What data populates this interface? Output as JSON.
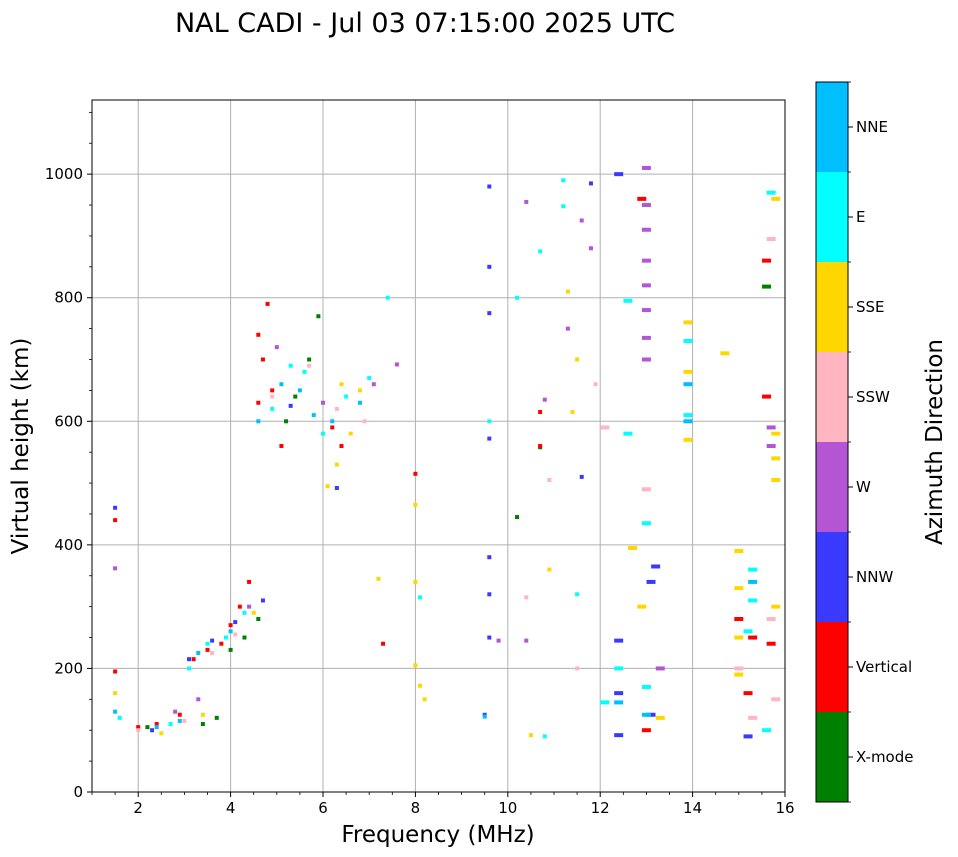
{
  "chart_data": {
    "type": "scatter",
    "title": "NAL CADI - Jul 03 07:15:00 2025 UTC",
    "xlabel": "Frequency (MHz)",
    "ylabel": "Virtual height (km)",
    "xlim": [
      1,
      16
    ],
    "ylim": [
      0,
      1120
    ],
    "xticks": [
      2,
      4,
      6,
      8,
      10,
      12,
      14,
      16
    ],
    "yticks": [
      0,
      200,
      400,
      600,
      800,
      1000
    ],
    "grid": true,
    "colorbar": {
      "label": "Azimuth Direction",
      "categories": [
        {
          "name": "X-mode",
          "color": "#008000"
        },
        {
          "name": "Vertical",
          "color": "#ff0000"
        },
        {
          "name": "NNW",
          "color": "#3a3aff"
        },
        {
          "name": "W",
          "color": "#b455d4"
        },
        {
          "name": "SSW",
          "color": "#ffb6c1"
        },
        {
          "name": "SSE",
          "color": "#ffd700"
        },
        {
          "name": "E",
          "color": "#00ffff"
        },
        {
          "name": "NNE",
          "color": "#00bfff"
        }
      ]
    },
    "series": [
      {
        "name": "X-mode",
        "x": [
          3.7,
          4.3,
          4.6,
          5.2,
          5.4,
          5.7,
          5.9,
          3.4,
          4.0,
          10.2,
          10.7,
          15.6,
          2.2
        ],
        "y": [
          120,
          250,
          280,
          600,
          640,
          700,
          770,
          110,
          230,
          445,
          558,
          818,
          105
        ]
      },
      {
        "name": "Vertical",
        "x": [
          1.5,
          1.5,
          2.0,
          2.4,
          2.9,
          3.2,
          3.5,
          3.8,
          4.0,
          4.2,
          4.4,
          4.6,
          4.7,
          4.9,
          5.1,
          6.2,
          6.4,
          7.3,
          8.0,
          10.7,
          10.7,
          12.9,
          13.0,
          15.6,
          15.6,
          15.2,
          15.3,
          15.0,
          15.7,
          4.6,
          4.8
        ],
        "y": [
          440,
          195,
          105,
          110,
          125,
          215,
          230,
          240,
          270,
          300,
          340,
          630,
          700,
          650,
          560,
          590,
          560,
          240,
          515,
          615,
          560,
          960,
          100,
          860,
          640,
          160,
          250,
          280,
          240,
          740,
          790
        ]
      },
      {
        "name": "NNW",
        "x": [
          1.5,
          2.3,
          3.1,
          3.6,
          4.1,
          4.7,
          5.3,
          6.3,
          9.6,
          9.6,
          9.6,
          9.6,
          9.6,
          9.6,
          9.6,
          12.4,
          12.4,
          12.4,
          12.4,
          13.1,
          13.1,
          13.2,
          15.2,
          11.6,
          11.8,
          9.5
        ],
        "y": [
          460,
          100,
          215,
          245,
          275,
          310,
          625,
          492,
          980,
          850,
          775,
          572,
          380,
          320,
          250,
          1000,
          245,
          160,
          92,
          340,
          125,
          365,
          90,
          510,
          985,
          125
        ]
      },
      {
        "name": "W",
        "x": [
          1.5,
          2.8,
          3.3,
          4.4,
          5.0,
          6.0,
          7.1,
          7.6,
          10.4,
          10.8,
          11.3,
          11.6,
          11.8,
          13.0,
          13.0,
          13.0,
          13.0,
          13.0,
          13.0,
          13.0,
          13.0,
          13.3,
          15.7,
          15.7,
          9.8,
          10.4
        ],
        "y": [
          362,
          130,
          150,
          300,
          720,
          630,
          660,
          692,
          955,
          635,
          750,
          925,
          880,
          1010,
          950,
          910,
          860,
          820,
          780,
          735,
          700,
          200,
          590,
          560,
          245,
          245
        ]
      },
      {
        "name": "SSW",
        "x": [
          2.0,
          3.0,
          3.6,
          4.1,
          4.9,
          5.7,
          6.3,
          6.9,
          11.9,
          12.1,
          13.0,
          15.7,
          15.8,
          15.7,
          15.0,
          15.3,
          10.9,
          10.4,
          11.5
        ],
        "y": [
          100,
          115,
          225,
          255,
          640,
          690,
          620,
          600,
          660,
          590,
          490,
          895,
          150,
          280,
          200,
          120,
          505,
          315,
          200
        ]
      },
      {
        "name": "SSE",
        "x": [
          1.5,
          2.5,
          3.4,
          4.5,
          6.1,
          6.3,
          6.4,
          6.6,
          6.8,
          7.2,
          8.0,
          8.1,
          8.2,
          8.0,
          8.0,
          10.5,
          10.9,
          11.3,
          11.4,
          11.5,
          12.7,
          12.9,
          13.0,
          13.3,
          13.9,
          13.9,
          13.9,
          14.7,
          15.0,
          15.0,
          15.0,
          15.0,
          15.8,
          15.8,
          15.8,
          15.8,
          15.8
        ],
        "y": [
          160,
          95,
          125,
          290,
          495,
          530,
          660,
          580,
          650,
          345,
          465,
          172,
          150,
          340,
          205,
          92,
          360,
          810,
          615,
          700,
          395,
          300,
          170,
          120,
          760,
          680,
          570,
          710,
          390,
          330,
          250,
          190,
          960,
          580,
          540,
          505,
          300
        ]
      },
      {
        "name": "E",
        "x": [
          1.6,
          2.7,
          3.1,
          3.5,
          3.9,
          4.3,
          4.9,
          5.3,
          5.6,
          6.0,
          6.5,
          7.0,
          7.4,
          8.1,
          9.6,
          10.2,
          10.7,
          11.2,
          11.2,
          12.1,
          12.6,
          12.6,
          12.4,
          13.0,
          13.0,
          13.9,
          13.9,
          15.2,
          15.3,
          15.3,
          15.6,
          15.7,
          11.5,
          10.8
        ],
        "y": [
          120,
          110,
          200,
          240,
          250,
          290,
          620,
          690,
          680,
          580,
          640,
          670,
          800,
          315,
          600,
          800,
          875,
          990,
          948,
          145,
          795,
          580,
          200,
          435,
          170,
          730,
          610,
          260,
          360,
          310,
          100,
          970,
          320,
          90
        ]
      },
      {
        "name": "NNE",
        "x": [
          1.5,
          2.4,
          2.9,
          3.3,
          4.0,
          4.6,
          5.1,
          5.5,
          5.8,
          6.2,
          6.8,
          12.4,
          13.0,
          13.9,
          13.9,
          15.3,
          9.5
        ],
        "y": [
          130,
          105,
          115,
          225,
          260,
          600,
          660,
          650,
          610,
          600,
          630,
          145,
          125,
          660,
          600,
          340,
          122
        ]
      }
    ]
  }
}
